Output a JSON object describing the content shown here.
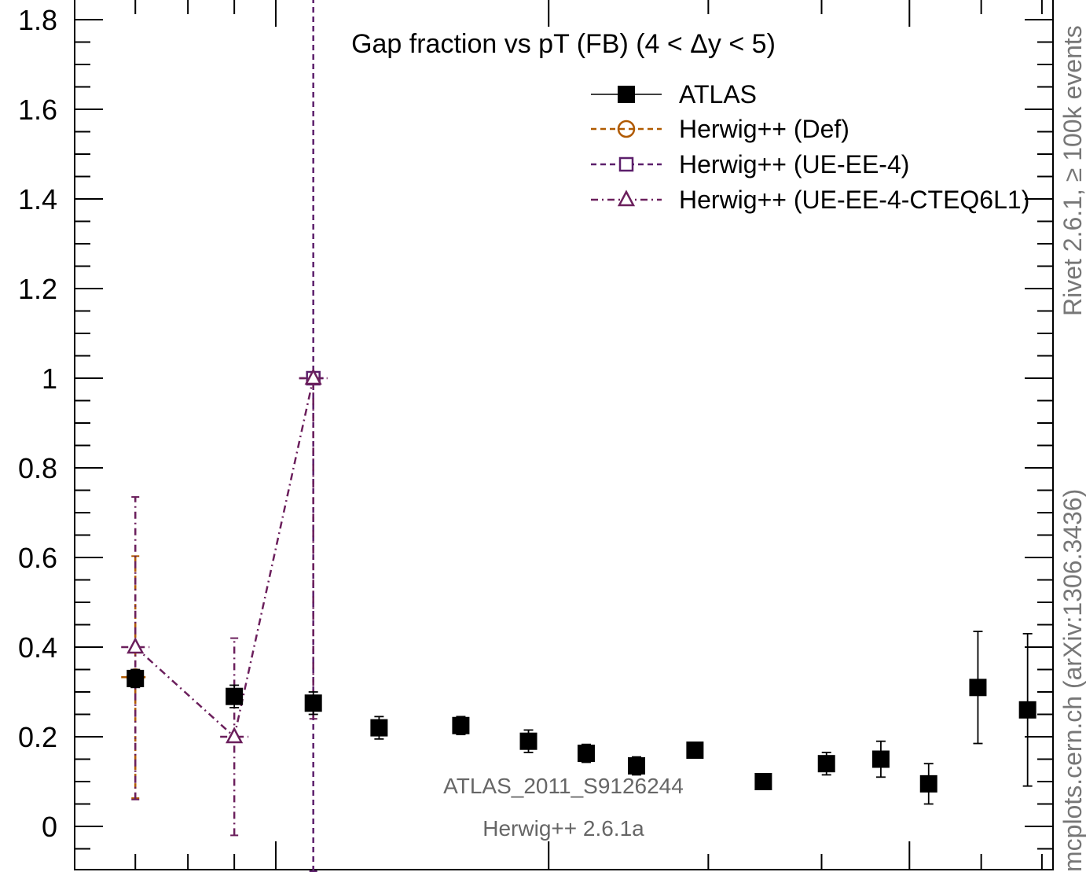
{
  "chart_data": {
    "type": "scatter",
    "title": "Gap fraction vs pT (FB) (4 < Δy < 5)",
    "xlabel": "",
    "ylabel": "",
    "ylim": [
      -0.1,
      1.85
    ],
    "y_ticks": [
      "0",
      "0.2",
      "0.4",
      "0.6",
      "0.8",
      "1",
      "1.2",
      "1.4",
      "1.6",
      "1.8"
    ],
    "legend_position": "top-right",
    "series": [
      {
        "name": "ATLAS",
        "color": "#000000",
        "marker": "filled-square",
        "points": [
          {
            "x": 70,
            "y": 0.33,
            "err": 0.02
          },
          {
            "x": 90,
            "y": 0.29,
            "err": 0.025
          },
          {
            "x": 110,
            "y": 0.275,
            "err": 0.025
          },
          {
            "x": 130,
            "y": 0.22,
            "err": 0.025
          },
          {
            "x": 160,
            "y": 0.225,
            "err": 0.02
          },
          {
            "x": 190,
            "y": 0.19,
            "err": 0.025
          },
          {
            "x": 220,
            "y": 0.163,
            "err": 0.02
          },
          {
            "x": 250,
            "y": 0.135,
            "err": 0.02
          },
          {
            "x": 290,
            "y": 0.17,
            "err": 0.015
          },
          {
            "x": 345,
            "y": 0.1,
            "err": 0.01
          },
          {
            "x": 405,
            "y": 0.14,
            "err": 0.025
          },
          {
            "x": 465,
            "y": 0.15,
            "err": 0.04
          },
          {
            "x": 525,
            "y": 0.095,
            "err": 0.045
          },
          {
            "x": 595,
            "y": 0.31,
            "err": 0.125
          },
          {
            "x": 675,
            "y": 0.26,
            "err": 0.17
          }
        ]
      },
      {
        "name": "Herwig++ (Def)",
        "color": "#b05a00",
        "marker": "open-circle",
        "points": [
          {
            "x": 70,
            "y": 0.333,
            "err_low": 0.27,
            "err_high": 0.27
          }
        ]
      },
      {
        "name": "Herwig++ (UE-EE-4)",
        "color": "#5c1f6b",
        "marker": "open-square",
        "points": [
          {
            "x": 110,
            "y": 1.0,
            "err_low": 1.1,
            "err_high": 0.85
          }
        ]
      },
      {
        "name": "Herwig++ (UE-EE-4-CTEQ6L1)",
        "color": "#6b1f5c",
        "marker": "open-triangle",
        "points": [
          {
            "x": 70,
            "y": 0.4,
            "err_low": 0.34,
            "err_high": 0.335
          },
          {
            "x": 90,
            "y": 0.2,
            "err_low": 0.22,
            "err_high": 0.22
          },
          {
            "x": 110,
            "y": 1.0,
            "err_low": 0.76,
            "err_high": 0.0
          }
        ]
      }
    ]
  },
  "legend": [
    {
      "label": "ATLAS"
    },
    {
      "label": "Herwig++ (Def)"
    },
    {
      "label": "Herwig++ (UE-EE-4)"
    },
    {
      "label": "Herwig++ (UE-EE-4-CTEQ6L1)"
    }
  ],
  "side_label_top": "Rivet 2.6.1, ≥ 100k events",
  "side_label_bottom": "mcplots.cern.ch (arXiv:1306.3436)",
  "analysis_label": "ATLAS_2011_S9126244",
  "generator_label": "Herwig++ 2.6.1a"
}
